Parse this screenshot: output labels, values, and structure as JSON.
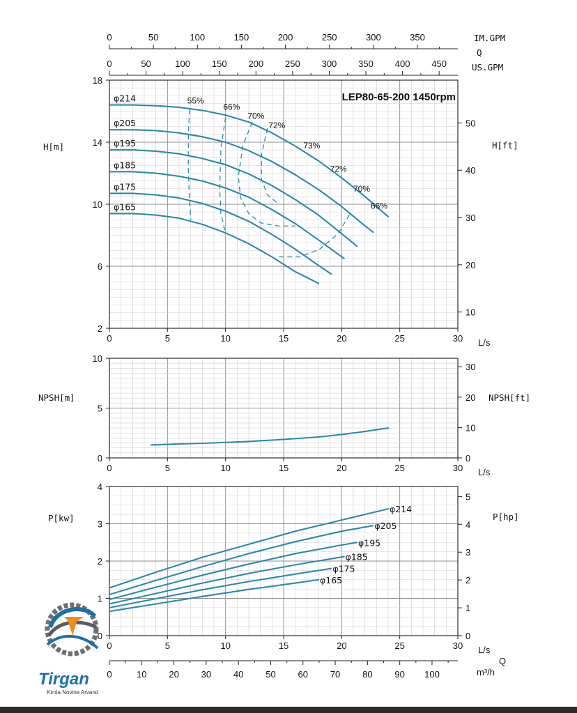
{
  "chart_data": [
    {
      "type": "line",
      "title": "LEP80-65-200 1450rpm",
      "xlabel": "L/s",
      "ylabel": "H[m]",
      "ylabel_right": "H[ft]",
      "xlim": [
        0,
        30
      ],
      "ylim": [
        2,
        18
      ],
      "ylim_right": [
        6.56,
        59.05
      ],
      "x_ticks": [
        "0",
        "5",
        "10",
        "15",
        "20",
        "25",
        "30"
      ],
      "y_ticks": [
        "2",
        "6",
        "10",
        "14",
        "18"
      ],
      "y_ticks_right": [
        "10",
        "20",
        "30",
        "40",
        "50"
      ],
      "top_axes": [
        {
          "unit": "IM.GPM",
          "ticks": [
            "0",
            "50",
            "100",
            "150",
            "200",
            "250",
            "300",
            "350"
          ]
        },
        {
          "unit": "Q",
          "ticks": []
        },
        {
          "unit": "US.GPM",
          "ticks": [
            "0",
            "50",
            "100",
            "150",
            "200",
            "250",
            "300",
            "350",
            "400",
            "450"
          ]
        }
      ],
      "series": [
        {
          "name": "φ214",
          "x": [
            0,
            2,
            4,
            6,
            8,
            10,
            12,
            14,
            16,
            18,
            20,
            22,
            24
          ],
          "y": [
            16.4,
            16.4,
            16.35,
            16.25,
            16.05,
            15.75,
            15.3,
            14.6,
            13.75,
            12.8,
            11.7,
            10.5,
            9.2
          ]
        },
        {
          "name": "φ205",
          "x": [
            0,
            2,
            4,
            6,
            8,
            10,
            12,
            14,
            16,
            18,
            20,
            22,
            22.7
          ],
          "y": [
            14.8,
            14.8,
            14.75,
            14.6,
            14.35,
            14.0,
            13.45,
            12.75,
            11.9,
            10.95,
            9.85,
            8.6,
            8.2
          ]
        },
        {
          "name": "φ195",
          "x": [
            0,
            2,
            4,
            6,
            8,
            10,
            12,
            14,
            16,
            18,
            20,
            21.3
          ],
          "y": [
            13.5,
            13.5,
            13.42,
            13.25,
            12.95,
            12.55,
            11.95,
            11.2,
            10.3,
            9.3,
            8.1,
            7.3
          ]
        },
        {
          "name": "φ185",
          "x": [
            0,
            2,
            4,
            6,
            8,
            10,
            12,
            14,
            16,
            18,
            20.2
          ],
          "y": [
            12.1,
            12.1,
            12.0,
            11.8,
            11.5,
            11.05,
            10.45,
            9.65,
            8.75,
            7.7,
            6.5
          ]
        },
        {
          "name": "φ175",
          "x": [
            0,
            2,
            4,
            6,
            8,
            10,
            12,
            14,
            16,
            18,
            19.1
          ],
          "y": [
            10.7,
            10.7,
            10.6,
            10.4,
            10.05,
            9.55,
            8.9,
            8.05,
            7.1,
            6.05,
            5.5
          ]
        },
        {
          "name": "φ165",
          "x": [
            0,
            2,
            4,
            6,
            8,
            10,
            12,
            14,
            16,
            18
          ],
          "y": [
            9.4,
            9.4,
            9.3,
            9.1,
            8.7,
            8.15,
            7.45,
            6.6,
            5.65,
            4.9
          ]
        }
      ],
      "efficiency_labels": [
        "55%",
        "66%",
        "70%",
        "72%",
        "73%",
        "72%",
        "70%",
        "66%"
      ],
      "iso_efficiency": [
        {
          "x": [
            6.9,
            6.8,
            6.8,
            6.9,
            7.0
          ],
          "y": [
            16.1,
            14.6,
            12.1,
            10.2,
            9.0
          ]
        },
        {
          "x": [
            10.0,
            9.6,
            9.5,
            9.6,
            10.0
          ],
          "y": [
            15.6,
            13.6,
            11.0,
            9.4,
            8.1
          ]
        },
        {
          "x": [
            12.3,
            11.5,
            11.1,
            11.3,
            12.0,
            13.0,
            14.5,
            16.0
          ],
          "y": [
            15.3,
            13.8,
            11.8,
            10.4,
            9.4,
            8.8,
            8.6,
            8.6
          ]
        },
        {
          "x": [
            13.6,
            13.1,
            13.1,
            13.6,
            14.6
          ],
          "y": [
            14.9,
            13.2,
            11.6,
            10.6,
            10.0
          ]
        },
        {
          "x": [
            14.6,
            16.4,
            18.1,
            19.7,
            20.8
          ],
          "y": [
            6.6,
            6.6,
            7.1,
            8.1,
            9.5
          ]
        }
      ]
    },
    {
      "type": "line",
      "xlabel": "L/s",
      "ylabel": "NPSH[m]",
      "ylabel_right": "NPSH[ft]",
      "xlim": [
        0,
        30
      ],
      "ylim": [
        0,
        10
      ],
      "ylim_right": [
        0,
        32.81
      ],
      "x_ticks": [
        "0",
        "5",
        "10",
        "15",
        "20",
        "25",
        "30"
      ],
      "y_ticks": [
        "0",
        "5",
        "10"
      ],
      "y_ticks_right": [
        "0",
        "10",
        "20",
        "30"
      ],
      "series": [
        {
          "name": "",
          "x": [
            3.6,
            6,
            9,
            12,
            15,
            18,
            20,
            22,
            24
          ],
          "y": [
            1.3,
            1.4,
            1.5,
            1.65,
            1.85,
            2.1,
            2.35,
            2.65,
            3.0
          ]
        }
      ]
    },
    {
      "type": "line",
      "xlabel": "L/s",
      "ylabel": "P[kw]",
      "ylabel_right": "P[hp]",
      "xlim": [
        0,
        30
      ],
      "ylim": [
        0,
        4
      ],
      "ylim_right": [
        0,
        5.36
      ],
      "x_ticks": [
        "0",
        "5",
        "10",
        "15",
        "20",
        "25",
        "30"
      ],
      "y_ticks": [
        "0",
        "1",
        "2",
        "3",
        "4"
      ],
      "y_ticks_right": [
        "0",
        "1",
        "2",
        "3",
        "4",
        "5"
      ],
      "bottom_axis": {
        "unit": "m³/h",
        "ticks": [
          "0",
          "10",
          "20",
          "30",
          "40",
          "50",
          "60",
          "70",
          "80",
          "90",
          "100"
        ]
      },
      "q_label": "Q",
      "series": [
        {
          "name": "φ214",
          "x": [
            0,
            4,
            8,
            12,
            16,
            20,
            24
          ],
          "y": [
            1.28,
            1.7,
            2.1,
            2.45,
            2.8,
            3.1,
            3.4
          ]
        },
        {
          "name": "φ205",
          "x": [
            0,
            4,
            8,
            12,
            16,
            20,
            22.7
          ],
          "y": [
            1.1,
            1.48,
            1.85,
            2.2,
            2.52,
            2.8,
            2.95
          ]
        },
        {
          "name": "φ195",
          "x": [
            0,
            4,
            8,
            12,
            16,
            20,
            21.3
          ],
          "y": [
            0.97,
            1.3,
            1.62,
            1.92,
            2.2,
            2.43,
            2.5
          ]
        },
        {
          "name": "φ185",
          "x": [
            0,
            4,
            8,
            12,
            16,
            20.2
          ],
          "y": [
            0.85,
            1.13,
            1.41,
            1.67,
            1.9,
            2.12
          ]
        },
        {
          "name": "φ175",
          "x": [
            0,
            4,
            8,
            12,
            16,
            19.1
          ],
          "y": [
            0.75,
            0.99,
            1.23,
            1.45,
            1.65,
            1.8
          ]
        },
        {
          "name": "φ165",
          "x": [
            0,
            4,
            8,
            12,
            16,
            18
          ],
          "y": [
            0.65,
            0.85,
            1.05,
            1.24,
            1.41,
            1.5
          ]
        }
      ]
    }
  ],
  "brand": {
    "name": "Tirgan",
    "tagline": "Kimia Novine Arvand"
  },
  "colors": {
    "curve": "#2b8aa8",
    "brand_blue": "#1d6fa5",
    "brand_orange": "#f28a1f",
    "brand_gray": "#6d6f73"
  }
}
